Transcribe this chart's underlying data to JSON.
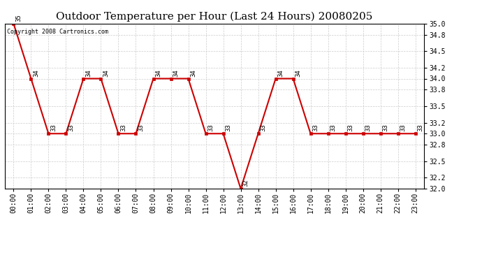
{
  "title": "Outdoor Temperature per Hour (Last 24 Hours) 20080205",
  "copyright_text": "Copyright 2008 Cartronics.com",
  "hours": [
    0,
    1,
    2,
    3,
    4,
    5,
    6,
    7,
    8,
    9,
    10,
    11,
    12,
    13,
    14,
    15,
    16,
    17,
    18,
    19,
    20,
    21,
    22,
    23
  ],
  "hour_labels": [
    "00:00",
    "01:00",
    "02:00",
    "03:00",
    "04:00",
    "05:00",
    "06:00",
    "07:00",
    "08:00",
    "09:00",
    "10:00",
    "11:00",
    "12:00",
    "13:00",
    "14:00",
    "15:00",
    "16:00",
    "17:00",
    "18:00",
    "19:00",
    "20:00",
    "21:00",
    "22:00",
    "23:00"
  ],
  "temps": [
    35,
    34,
    33,
    33,
    34,
    34,
    33,
    33,
    34,
    34,
    34,
    33,
    33,
    32,
    33,
    34,
    34,
    33,
    33,
    33,
    33,
    33,
    33,
    33
  ],
  "ylim": [
    32.0,
    35.0
  ],
  "yticks": [
    32.0,
    32.2,
    32.5,
    32.8,
    33.0,
    33.2,
    33.5,
    33.8,
    34.0,
    34.2,
    34.5,
    34.8,
    35.0
  ],
  "line_color": "#cc0000",
  "marker_color": "#cc0000",
  "bg_color": "#ffffff",
  "plot_bg_color": "#ffffff",
  "grid_color": "#cccccc",
  "title_fontsize": 11,
  "tick_fontsize": 7,
  "annotation_fontsize": 6.5
}
